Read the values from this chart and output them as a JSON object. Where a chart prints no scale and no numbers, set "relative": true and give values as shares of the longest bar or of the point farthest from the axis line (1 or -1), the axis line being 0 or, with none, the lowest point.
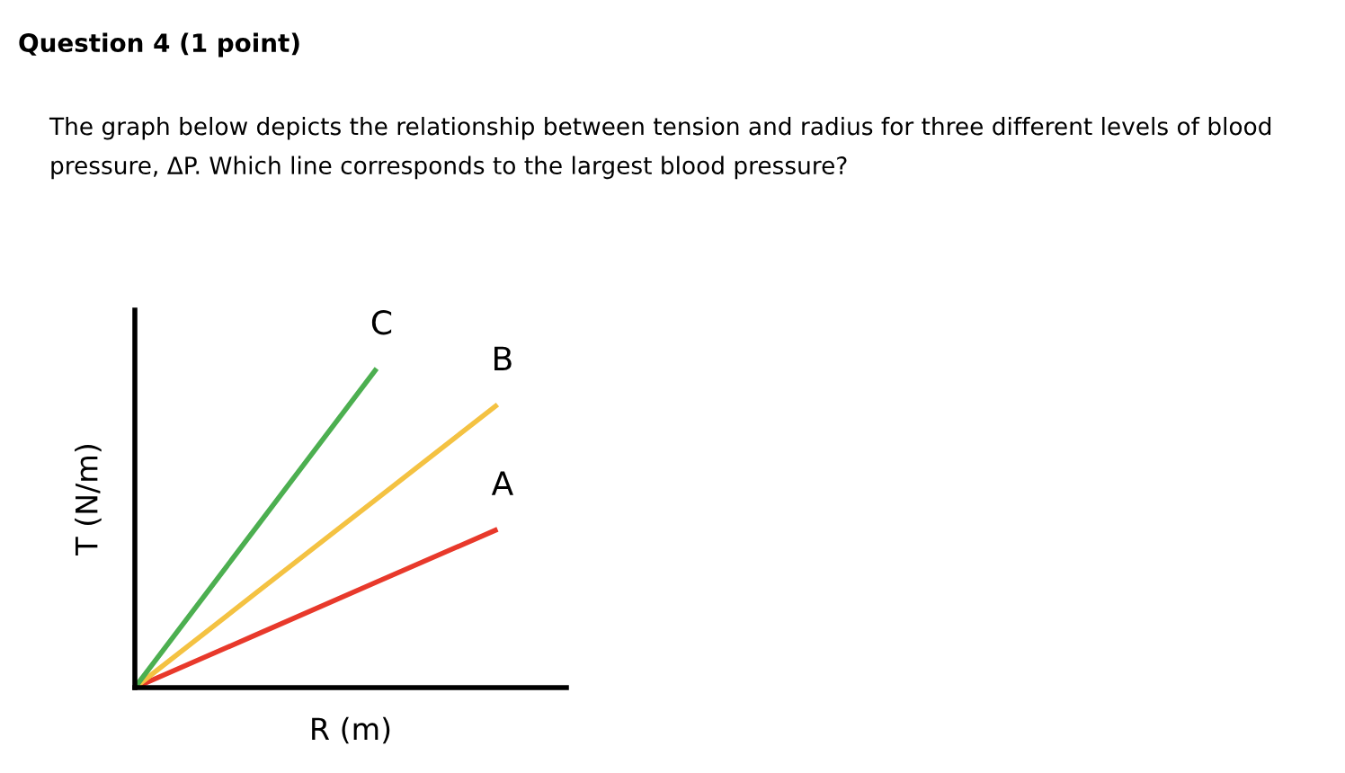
{
  "chart_data": {
    "type": "line",
    "title": "Question 4 (1 point)",
    "subtitle": "The graph below depicts the relationship between tension and radius for three different levels of blood pressure, ΔP. Which line corresponds to the largest blood pressure?",
    "xlabel": "R (m)",
    "ylabel": "T (N/m)",
    "relative": true,
    "legend": false,
    "marker": "none",
    "line_style": "solid",
    "categories": [
      null,
      null,
      null,
      null
    ],
    "series": [
      {
        "name": "A",
        "color": "#e8392b",
        "values": [
          0,
          0.165,
          0.331,
          0.496
        ]
      },
      {
        "name": "B",
        "color": "#f4c242",
        "values": [
          0,
          0.296,
          0.591,
          0.887
        ]
      },
      {
        "name": "C",
        "color": "#4caf50",
        "values": [
          0,
          0.5,
          1,
          null
        ]
      }
    ]
  }
}
